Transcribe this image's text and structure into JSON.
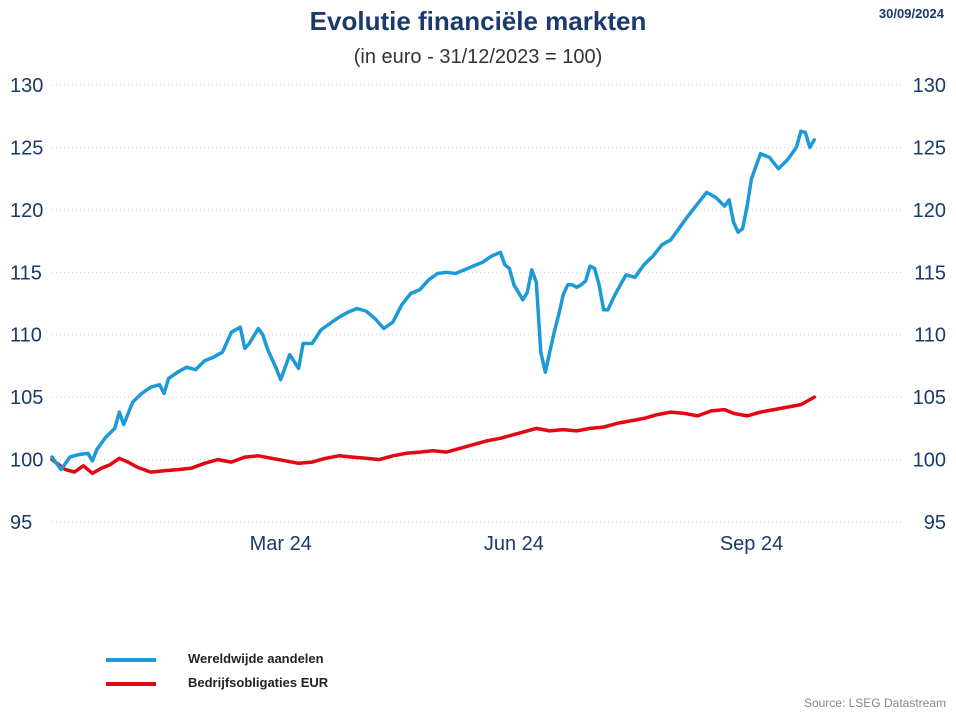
{
  "header": {
    "title": "Evolutie financiële markten",
    "subtitle": "(in euro - 31/12/2023 = 100)",
    "date": "30/09/2024"
  },
  "footer": {
    "source": "Source: LSEG Datastream"
  },
  "chart_data": {
    "type": "line",
    "title": "Evolutie financiële markten",
    "subtitle": "(in euro - 31/12/2023 = 100)",
    "x_axis": {
      "unit": "trading day",
      "range": [
        0,
        190
      ],
      "tick_labels": [
        {
          "x": 51,
          "label": "Mar 24"
        },
        {
          "x": 103,
          "label": "Jun 24"
        },
        {
          "x": 156,
          "label": "Sep 24"
        }
      ]
    },
    "y_axis": {
      "range": [
        95,
        130
      ],
      "ticks": [
        95,
        100,
        105,
        110,
        115,
        120,
        125,
        130
      ],
      "left_and_right": true
    },
    "grid": {
      "horizontal": true,
      "style": "dotted"
    },
    "legend_position": "bottom-left",
    "series": [
      {
        "name": "Wereldwijde aandelen",
        "color": "#1b9ad6",
        "points": [
          [
            0,
            100.2
          ],
          [
            2,
            99.2
          ],
          [
            4,
            100.2
          ],
          [
            6,
            100.4
          ],
          [
            8,
            100.5
          ],
          [
            9,
            99.9
          ],
          [
            10,
            100.8
          ],
          [
            12,
            101.8
          ],
          [
            14,
            102.5
          ],
          [
            15,
            103.8
          ],
          [
            16,
            102.8
          ],
          [
            18,
            104.6
          ],
          [
            20,
            105.3
          ],
          [
            22,
            105.8
          ],
          [
            24,
            106.0
          ],
          [
            25,
            105.3
          ],
          [
            26,
            106.5
          ],
          [
            28,
            107.0
          ],
          [
            30,
            107.4
          ],
          [
            32,
            107.2
          ],
          [
            34,
            107.9
          ],
          [
            36,
            108.2
          ],
          [
            38,
            108.6
          ],
          [
            40,
            110.2
          ],
          [
            42,
            110.6
          ],
          [
            43,
            108.9
          ],
          [
            44,
            109.3
          ],
          [
            46,
            110.5
          ],
          [
            47,
            110.0
          ],
          [
            48,
            108.9
          ],
          [
            50,
            107.3
          ],
          [
            51,
            106.4
          ],
          [
            53,
            108.4
          ],
          [
            55,
            107.3
          ],
          [
            56,
            109.3
          ],
          [
            58,
            109.3
          ],
          [
            60,
            110.4
          ],
          [
            62,
            110.9
          ],
          [
            64,
            111.4
          ],
          [
            66,
            111.8
          ],
          [
            68,
            112.1
          ],
          [
            70,
            111.9
          ],
          [
            72,
            111.3
          ],
          [
            74,
            110.5
          ],
          [
            76,
            111.0
          ],
          [
            78,
            112.4
          ],
          [
            80,
            113.3
          ],
          [
            82,
            113.6
          ],
          [
            84,
            114.4
          ],
          [
            86,
            114.9
          ],
          [
            88,
            115.0
          ],
          [
            90,
            114.9
          ],
          [
            92,
            115.2
          ],
          [
            94,
            115.5
          ],
          [
            96,
            115.8
          ],
          [
            98,
            116.3
          ],
          [
            100,
            116.6
          ],
          [
            101,
            115.6
          ],
          [
            102,
            115.3
          ],
          [
            103,
            114.0
          ],
          [
            104,
            113.4
          ],
          [
            105,
            112.8
          ],
          [
            106,
            113.4
          ],
          [
            107,
            115.2
          ],
          [
            108,
            114.2
          ],
          [
            109,
            108.6
          ],
          [
            110,
            107.0
          ],
          [
            111,
            108.6
          ],
          [
            112,
            110.2
          ],
          [
            113,
            111.6
          ],
          [
            114,
            113.2
          ],
          [
            115,
            114.0
          ],
          [
            116,
            114.0
          ],
          [
            117,
            113.8
          ],
          [
            118,
            114.0
          ],
          [
            119,
            114.3
          ],
          [
            120,
            115.5
          ],
          [
            121,
            115.3
          ],
          [
            122,
            114.0
          ],
          [
            123,
            112.0
          ],
          [
            124,
            112.0
          ],
          [
            125,
            112.8
          ],
          [
            126,
            113.5
          ],
          [
            128,
            114.8
          ],
          [
            130,
            114.6
          ],
          [
            132,
            115.6
          ],
          [
            134,
            116.3
          ],
          [
            136,
            117.2
          ],
          [
            138,
            117.6
          ],
          [
            140,
            118.6
          ],
          [
            142,
            119.6
          ],
          [
            144,
            120.5
          ],
          [
            146,
            121.4
          ],
          [
            148,
            121.0
          ],
          [
            150,
            120.3
          ],
          [
            151,
            120.8
          ],
          [
            152,
            119.0
          ],
          [
            153,
            118.2
          ],
          [
            154,
            118.5
          ],
          [
            155,
            120.3
          ],
          [
            156,
            122.5
          ],
          [
            158,
            124.5
          ],
          [
            160,
            124.2
          ],
          [
            162,
            123.3
          ],
          [
            164,
            124.0
          ],
          [
            166,
            125.0
          ],
          [
            167,
            126.3
          ],
          [
            168,
            126.2
          ],
          [
            169,
            125.0
          ],
          [
            170,
            125.6
          ]
        ]
      },
      {
        "name": "Bedrijfsobligaties EUR",
        "color": "#e30613",
        "points": [
          [
            0,
            100.0
          ],
          [
            3,
            99.2
          ],
          [
            5,
            99.0
          ],
          [
            7,
            99.5
          ],
          [
            9,
            98.9
          ],
          [
            11,
            99.3
          ],
          [
            13,
            99.6
          ],
          [
            15,
            100.1
          ],
          [
            17,
            99.8
          ],
          [
            19,
            99.4
          ],
          [
            22,
            99.0
          ],
          [
            25,
            99.1
          ],
          [
            28,
            99.2
          ],
          [
            31,
            99.3
          ],
          [
            34,
            99.7
          ],
          [
            37,
            100.0
          ],
          [
            40,
            99.8
          ],
          [
            43,
            100.2
          ],
          [
            46,
            100.3
          ],
          [
            49,
            100.1
          ],
          [
            52,
            99.9
          ],
          [
            55,
            99.7
          ],
          [
            58,
            99.8
          ],
          [
            61,
            100.1
          ],
          [
            64,
            100.3
          ],
          [
            67,
            100.2
          ],
          [
            70,
            100.1
          ],
          [
            73,
            100.0
          ],
          [
            76,
            100.3
          ],
          [
            79,
            100.5
          ],
          [
            82,
            100.6
          ],
          [
            85,
            100.7
          ],
          [
            88,
            100.6
          ],
          [
            91,
            100.9
          ],
          [
            94,
            101.2
          ],
          [
            97,
            101.5
          ],
          [
            100,
            101.7
          ],
          [
            103,
            102.0
          ],
          [
            106,
            102.3
          ],
          [
            108,
            102.5
          ],
          [
            111,
            102.3
          ],
          [
            114,
            102.4
          ],
          [
            117,
            102.3
          ],
          [
            120,
            102.5
          ],
          [
            123,
            102.6
          ],
          [
            126,
            102.9
          ],
          [
            129,
            103.1
          ],
          [
            132,
            103.3
          ],
          [
            135,
            103.6
          ],
          [
            138,
            103.8
          ],
          [
            141,
            103.7
          ],
          [
            144,
            103.5
          ],
          [
            147,
            103.9
          ],
          [
            150,
            104.0
          ],
          [
            152,
            103.7
          ],
          [
            155,
            103.5
          ],
          [
            158,
            103.8
          ],
          [
            161,
            104.0
          ],
          [
            164,
            104.2
          ],
          [
            167,
            104.4
          ],
          [
            170,
            105.0
          ]
        ]
      }
    ]
  }
}
